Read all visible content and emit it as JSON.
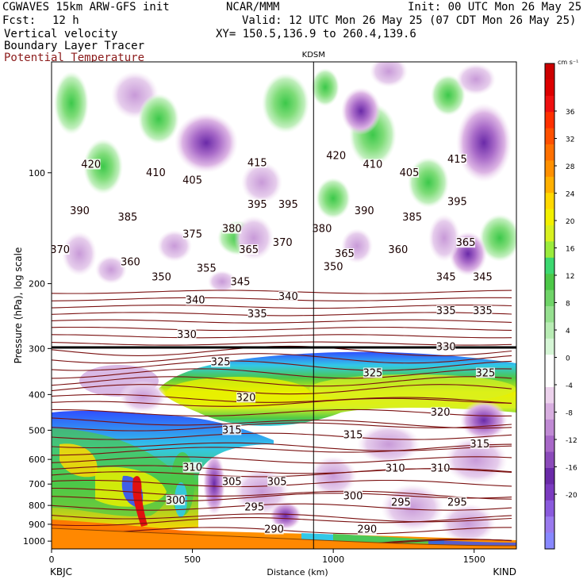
{
  "header": {
    "model": "CGWAVES 15km ARW-GFS init",
    "org": "NCAR/MMM",
    "init": "Init: 00 UTC Mon 26 May 25",
    "fcst_label": "Fcst:",
    "fcst_value": "12 h",
    "valid": "Valid: 12 UTC Mon 26 May 25 (07 CDT Mon 26 May 25)",
    "field1": "Vertical velocity",
    "field2": "Boundary Layer Tracer",
    "field3": "Potential Temperature",
    "xy": "XY= 150.5,136.9 to 260.4,139.6"
  },
  "colors": {
    "theta": "#7a1010",
    "field3_text": "#8b1a1a"
  },
  "chart_data": {
    "type": "heatmap",
    "title": "",
    "xlabel": "Distance (km)",
    "ylabel": "Pressure (hPa), log scale",
    "xlim": [
      0,
      1650
    ],
    "ylim": [
      1050,
      50
    ],
    "yscale": "log",
    "x_ticks": [
      0,
      500,
      1000,
      1500
    ],
    "y_ticks": [
      100,
      200,
      300,
      400,
      500,
      600,
      700,
      800,
      900,
      1000
    ],
    "x_tick_labels": [
      "0",
      "500",
      "1000",
      "1500"
    ],
    "y_tick_labels": [
      "100",
      "200",
      "300",
      "400",
      "500",
      "600",
      "700",
      "800",
      "900",
      "1000"
    ],
    "endpoint_left": "KBJC",
    "endpoint_right": "KIND",
    "marker": {
      "label": "KDSM",
      "x": 930
    },
    "colorbar": {
      "unit": "cm s⁻¹",
      "levels": [
        -22,
        -20,
        -18,
        -16,
        -14,
        -12,
        -10,
        -8,
        -6,
        -4,
        -2,
        2,
        4,
        6,
        8,
        10,
        12,
        14,
        16,
        18,
        20,
        22,
        24,
        26,
        28,
        30,
        32,
        34,
        36,
        38,
        40
      ],
      "labels": [
        "36",
        "32",
        "28",
        "24",
        "20",
        "16",
        "12",
        "8",
        "4",
        "0",
        "-4",
        "-8",
        "-12",
        "-16",
        "-20"
      ],
      "colors": [
        "#8888ff",
        "#9a7aee",
        "#8a5add",
        "#7b3bc0",
        "#6a2aa8",
        "#8b4aba",
        "#a868c8",
        "#c08ad4",
        "#d8aee0",
        "#ecd2ec",
        "#ffffff",
        "#ffffff",
        "#d6f6d6",
        "#b8ecb4",
        "#96e090",
        "#6fd468",
        "#4cc848",
        "#3cd870",
        "#9aeb3c",
        "#d8f020",
        "#f2f000",
        "#ffd800",
        "#ffb000",
        "#ff9000",
        "#ff7000",
        "#ff5000",
        "#ff3000",
        "#ee1010",
        "#dd0000",
        "#cc0000"
      ]
    },
    "theta_labels": [
      {
        "text": "420",
        "x": 140,
        "p": 95
      },
      {
        "text": "410",
        "x": 370,
        "p": 100
      },
      {
        "text": "405",
        "x": 500,
        "p": 105
      },
      {
        "text": "415",
        "x": 730,
        "p": 94
      },
      {
        "text": "420",
        "x": 1010,
        "p": 90
      },
      {
        "text": "410",
        "x": 1140,
        "p": 95
      },
      {
        "text": "405",
        "x": 1270,
        "p": 100
      },
      {
        "text": "415",
        "x": 1440,
        "p": 92
      },
      {
        "text": "390",
        "x": 100,
        "p": 127
      },
      {
        "text": "385",
        "x": 270,
        "p": 132
      },
      {
        "text": "375",
        "x": 500,
        "p": 147
      },
      {
        "text": "380",
        "x": 640,
        "p": 142
      },
      {
        "text": "395",
        "x": 730,
        "p": 122
      },
      {
        "text": "395",
        "x": 840,
        "p": 122
      },
      {
        "text": "390",
        "x": 1110,
        "p": 127
      },
      {
        "text": "385",
        "x": 1280,
        "p": 132
      },
      {
        "text": "395",
        "x": 1440,
        "p": 120
      },
      {
        "text": "380",
        "x": 960,
        "p": 142
      },
      {
        "text": "365",
        "x": 700,
        "p": 162
      },
      {
        "text": "370",
        "x": 820,
        "p": 155
      },
      {
        "text": "370",
        "x": 30,
        "p": 162
      },
      {
        "text": "365",
        "x": 1040,
        "p": 166
      },
      {
        "text": "360",
        "x": 1230,
        "p": 162
      },
      {
        "text": "365",
        "x": 1470,
        "p": 155
      },
      {
        "text": "360",
        "x": 280,
        "p": 175
      },
      {
        "text": "350",
        "x": 390,
        "p": 192
      },
      {
        "text": "355",
        "x": 550,
        "p": 182
      },
      {
        "text": "350",
        "x": 1000,
        "p": 180
      },
      {
        "text": "345",
        "x": 670,
        "p": 198
      },
      {
        "text": "345",
        "x": 1400,
        "p": 192
      },
      {
        "text": "345",
        "x": 1530,
        "p": 192
      },
      {
        "text": "340",
        "x": 510,
        "p": 222
      },
      {
        "text": "340",
        "x": 840,
        "p": 217
      },
      {
        "text": "335",
        "x": 730,
        "p": 242
      },
      {
        "text": "335",
        "x": 1400,
        "p": 237
      },
      {
        "text": "335",
        "x": 1530,
        "p": 237
      },
      {
        "text": "330",
        "x": 480,
        "p": 275
      },
      {
        "text": "330",
        "x": 1400,
        "p": 297
      },
      {
        "text": "325",
        "x": 600,
        "p": 327
      },
      {
        "text": "325",
        "x": 1140,
        "p": 350
      },
      {
        "text": "325",
        "x": 1540,
        "p": 350
      },
      {
        "text": "320",
        "x": 690,
        "p": 408
      },
      {
        "text": "320",
        "x": 1380,
        "p": 448
      },
      {
        "text": "315",
        "x": 640,
        "p": 500
      },
      {
        "text": "315",
        "x": 1070,
        "p": 515
      },
      {
        "text": "315",
        "x": 1520,
        "p": 545
      },
      {
        "text": "310",
        "x": 500,
        "p": 632
      },
      {
        "text": "310",
        "x": 1220,
        "p": 635
      },
      {
        "text": "310",
        "x": 1380,
        "p": 635
      },
      {
        "text": "305",
        "x": 640,
        "p": 690
      },
      {
        "text": "305",
        "x": 800,
        "p": 690
      },
      {
        "text": "300",
        "x": 440,
        "p": 775
      },
      {
        "text": "300",
        "x": 1070,
        "p": 755
      },
      {
        "text": "295",
        "x": 720,
        "p": 810
      },
      {
        "text": "295",
        "x": 1240,
        "p": 785
      },
      {
        "text": "295",
        "x": 1440,
        "p": 785
      },
      {
        "text": "290",
        "x": 790,
        "p": 930
      },
      {
        "text": "290",
        "x": 1120,
        "p": 930
      }
    ]
  }
}
